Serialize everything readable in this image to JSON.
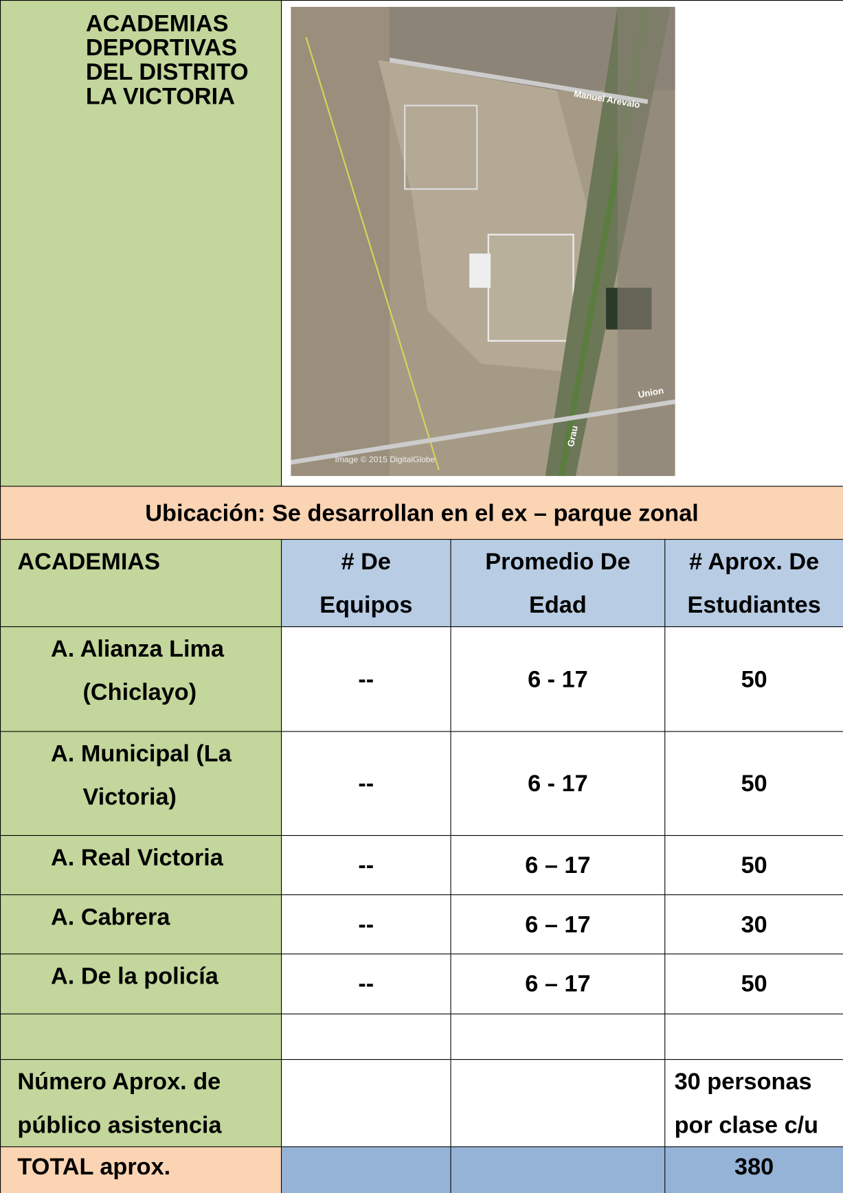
{
  "header": {
    "title_lines": [
      "ACADEMIAS",
      "DEPORTIVAS",
      "DEL  DISTRITO",
      "LA VICTORIA"
    ]
  },
  "map": {
    "labels": [
      "Manuel Arevalo",
      "Union",
      "Grau",
      "Image © 2015 DigitalGlobe"
    ]
  },
  "location": "Ubicación:  Se desarrollan en el ex – parque zonal",
  "table": {
    "columns": [
      [
        "ACADEMIAS"
      ],
      [
        "# De",
        "Equipos"
      ],
      [
        "Promedio De",
        "Edad"
      ],
      [
        "# Aprox. De",
        "Estudiantes"
      ]
    ],
    "rows": [
      [
        [
          "A. Alianza    Lima",
          "(Chiclayo)"
        ],
        "--",
        "6 - 17",
        "50"
      ],
      [
        [
          "A. Municipal   (La",
          "Victoria)"
        ],
        "--",
        "6 - 17",
        "50"
      ],
      [
        [
          "A. Real Victoria"
        ],
        "--",
        "6 – 17",
        "50"
      ],
      [
        [
          "A. Cabrera"
        ],
        "--",
        "6 – 17",
        "30"
      ],
      [
        [
          "A. De la policía"
        ],
        "--",
        "6 – 17",
        "50"
      ]
    ],
    "attendance": {
      "label": [
        "Número  Aprox.  de",
        "público asistencia"
      ],
      "value": [
        "30  personas",
        "por clase c/u"
      ]
    },
    "total": {
      "label": "TOTAL aprox.",
      "value": "380"
    }
  }
}
